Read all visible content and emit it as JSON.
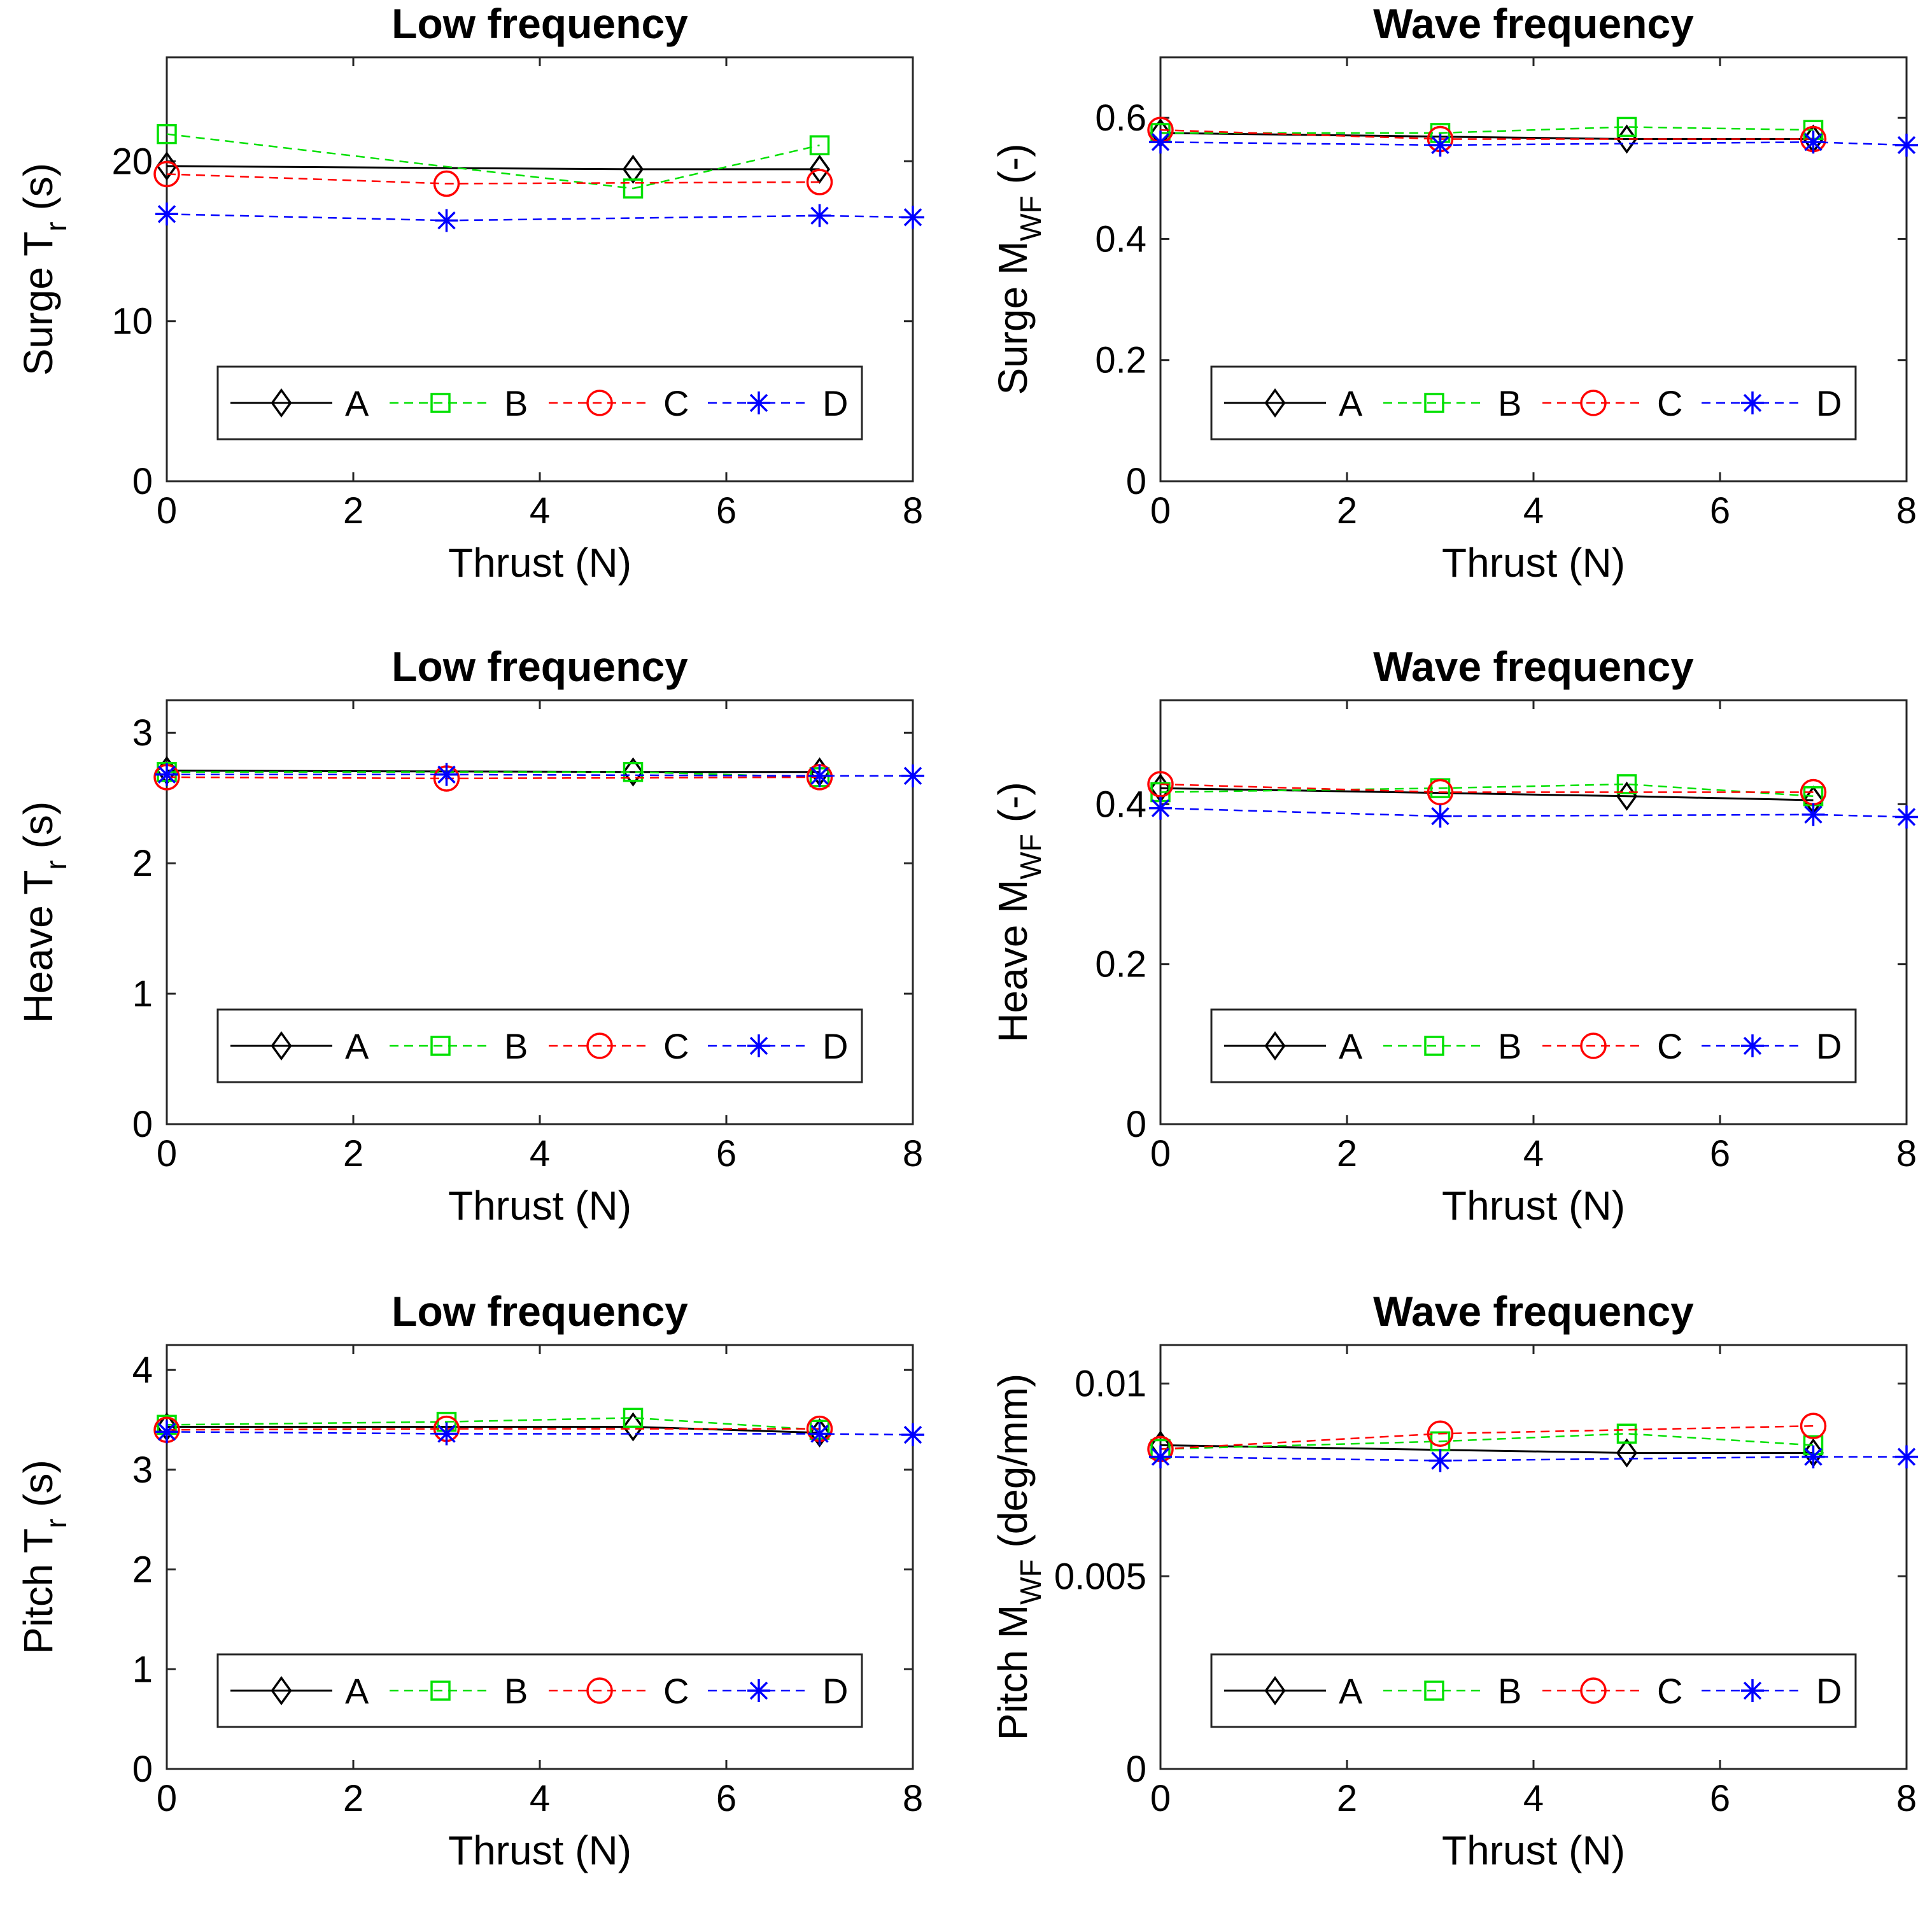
{
  "figure": {
    "legend_placement": "bottom-center, inside axes",
    "legend_labels": [
      "A",
      "B",
      "C",
      "D"
    ],
    "series_colors": {
      "A": "#000000",
      "B": "#00e000",
      "C": "#ff0000",
      "D": "#0000ff"
    },
    "series_markers": {
      "A": "diamond",
      "B": "square",
      "C": "circle",
      "D": "asterisk"
    }
  },
  "chart_data": [
    {
      "type": "line",
      "title": "Low frequency",
      "xlabel": "Thrust (N)",
      "ylabel_main": "Surge T",
      "ylabel_sub": "r",
      "ylabel_tail": " (s)",
      "xlim": [
        0,
        8
      ],
      "ylim": [
        0,
        26.5
      ],
      "xticks": [
        0,
        2,
        4,
        6,
        8
      ],
      "yticks": [
        0,
        10,
        20
      ],
      "ytick_labels": [
        "0",
        "10",
        "20"
      ],
      "series": [
        {
          "name": "A",
          "x": [
            0,
            5,
            7
          ],
          "values": [
            19.7,
            19.5,
            19.5
          ]
        },
        {
          "name": "B",
          "x": [
            0,
            5,
            7
          ],
          "values": [
            21.7,
            18.3,
            21.0
          ]
        },
        {
          "name": "C",
          "x": [
            0,
            3,
            7
          ],
          "values": [
            19.2,
            18.6,
            18.7
          ]
        },
        {
          "name": "D",
          "x": [
            0,
            3,
            7,
            8
          ],
          "values": [
            16.7,
            16.3,
            16.6,
            16.5
          ]
        }
      ]
    },
    {
      "type": "line",
      "title": "Wave frequency",
      "xlabel": "Thrust (N)",
      "ylabel_main": "Surge M",
      "ylabel_sub": "WF",
      "ylabel_tail": " (-)",
      "xlim": [
        0,
        8
      ],
      "ylim": [
        0,
        0.7
      ],
      "xticks": [
        0,
        2,
        4,
        6,
        8
      ],
      "yticks": [
        0,
        0.2,
        0.4,
        0.6
      ],
      "ytick_labels": [
        "0",
        "0.2",
        "0.4",
        "0.6"
      ],
      "series": [
        {
          "name": "A",
          "x": [
            0,
            5,
            7
          ],
          "values": [
            0.575,
            0.565,
            0.565
          ]
        },
        {
          "name": "B",
          "x": [
            0,
            3,
            5,
            7
          ],
          "values": [
            0.575,
            0.575,
            0.585,
            0.58
          ]
        },
        {
          "name": "C",
          "x": [
            0,
            3,
            7
          ],
          "values": [
            0.58,
            0.565,
            0.565
          ]
        },
        {
          "name": "D",
          "x": [
            0,
            3,
            7,
            8
          ],
          "values": [
            0.56,
            0.555,
            0.56,
            0.555
          ]
        }
      ]
    },
    {
      "type": "line",
      "title": "Low frequency",
      "xlabel": "Thrust (N)",
      "ylabel_main": "Heave T",
      "ylabel_sub": "r",
      "ylabel_tail": " (s)",
      "xlim": [
        0,
        8
      ],
      "ylim": [
        0,
        3.25
      ],
      "xticks": [
        0,
        2,
        4,
        6,
        8
      ],
      "yticks": [
        0,
        1,
        2,
        3
      ],
      "ytick_labels": [
        "0",
        "1",
        "2",
        "3"
      ],
      "series": [
        {
          "name": "A",
          "x": [
            0,
            5,
            7
          ],
          "values": [
            2.71,
            2.7,
            2.7
          ]
        },
        {
          "name": "B",
          "x": [
            0,
            5,
            7
          ],
          "values": [
            2.7,
            2.7,
            2.66
          ]
        },
        {
          "name": "C",
          "x": [
            0,
            3,
            7
          ],
          "values": [
            2.66,
            2.65,
            2.66
          ]
        },
        {
          "name": "D",
          "x": [
            0,
            3,
            7,
            8
          ],
          "values": [
            2.68,
            2.68,
            2.67,
            2.67
          ]
        }
      ]
    },
    {
      "type": "line",
      "title": "Wave frequency",
      "xlabel": "Thrust (N)",
      "ylabel_main": "Heave M",
      "ylabel_sub": "WF",
      "ylabel_tail": " (-)",
      "xlim": [
        0,
        8
      ],
      "ylim": [
        0,
        0.53
      ],
      "xticks": [
        0,
        2,
        4,
        6,
        8
      ],
      "yticks": [
        0,
        0.2,
        0.4
      ],
      "ytick_labels": [
        "0",
        "0.2",
        "0.4"
      ],
      "series": [
        {
          "name": "A",
          "x": [
            0,
            5,
            7
          ],
          "values": [
            0.42,
            0.41,
            0.405
          ]
        },
        {
          "name": "B",
          "x": [
            0,
            3,
            5,
            7
          ],
          "values": [
            0.415,
            0.42,
            0.425,
            0.41
          ]
        },
        {
          "name": "C",
          "x": [
            0,
            3,
            7
          ],
          "values": [
            0.425,
            0.415,
            0.415
          ]
        },
        {
          "name": "D",
          "x": [
            0,
            3,
            7,
            8
          ],
          "values": [
            0.395,
            0.385,
            0.387,
            0.384
          ]
        }
      ]
    },
    {
      "type": "line",
      "title": "Low frequency",
      "xlabel": "Thrust (N)",
      "ylabel_main": "Pitch T",
      "ylabel_sub": "r",
      "ylabel_tail": " (s)",
      "xlim": [
        0,
        8
      ],
      "ylim": [
        0,
        4.25
      ],
      "xticks": [
        0,
        2,
        4,
        6,
        8
      ],
      "yticks": [
        0,
        1,
        2,
        3,
        4
      ],
      "ytick_labels": [
        "0",
        "1",
        "2",
        "3",
        "4"
      ],
      "series": [
        {
          "name": "A",
          "x": [
            0,
            5,
            7
          ],
          "values": [
            3.43,
            3.43,
            3.37
          ]
        },
        {
          "name": "B",
          "x": [
            0,
            3,
            5,
            7
          ],
          "values": [
            3.45,
            3.48,
            3.52,
            3.4
          ]
        },
        {
          "name": "C",
          "x": [
            0,
            3,
            7
          ],
          "values": [
            3.4,
            3.41,
            3.41
          ]
        },
        {
          "name": "D",
          "x": [
            0,
            3,
            7,
            8
          ],
          "values": [
            3.38,
            3.36,
            3.36,
            3.35
          ]
        }
      ]
    },
    {
      "type": "line",
      "title": "Wave frequency",
      "xlabel": "Thrust (N)",
      "ylabel_main": "Pitch M",
      "ylabel_sub": "WF",
      "ylabel_tail": " (deg/mm)",
      "xlim": [
        0,
        8
      ],
      "ylim": [
        0,
        0.011
      ],
      "xticks": [
        0,
        2,
        4,
        6,
        8
      ],
      "yticks": [
        0,
        0.005,
        0.01
      ],
      "ytick_labels": [
        "0",
        "0.005",
        "0.01"
      ],
      "series": [
        {
          "name": "A",
          "x": [
            0,
            5,
            7
          ],
          "values": [
            0.0084,
            0.0082,
            0.0082
          ]
        },
        {
          "name": "B",
          "x": [
            0,
            3,
            5,
            7
          ],
          "values": [
            0.0083,
            0.0085,
            0.0087,
            0.0084
          ]
        },
        {
          "name": "C",
          "x": [
            0,
            3,
            7
          ],
          "values": [
            0.0083,
            0.0087,
            0.0089
          ]
        },
        {
          "name": "D",
          "x": [
            0,
            3,
            7,
            8
          ],
          "values": [
            0.0081,
            0.008,
            0.0081,
            0.0081
          ]
        }
      ]
    }
  ]
}
